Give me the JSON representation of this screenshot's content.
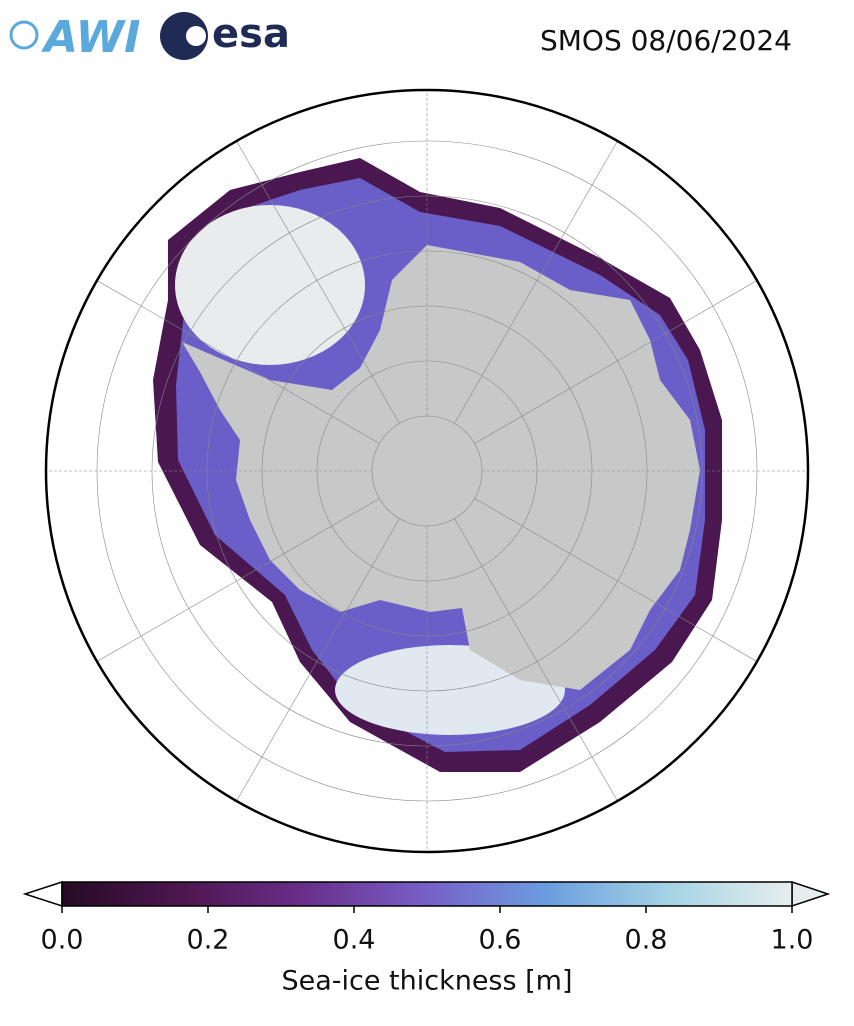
{
  "header": {
    "logos": [
      "AWI",
      "esa"
    ],
    "title": "SMOS 08/06/2024"
  },
  "colorbar": {
    "label": "Sea-ice thickness [m]",
    "lim": [
      0,
      1
    ],
    "ticks": [
      {
        "value": 0,
        "label": "0.0"
      },
      0.2,
      0.4,
      0.6,
      0.8,
      {
        "value": 1,
        "label": "1.0"
      }
    ],
    "colors": [
      "#260b25",
      "#4e1650",
      "#6a2f8a",
      "#7760c8",
      "#6b9ee0",
      "#a6d3e4",
      "#e6eeed"
    ]
  }
}
